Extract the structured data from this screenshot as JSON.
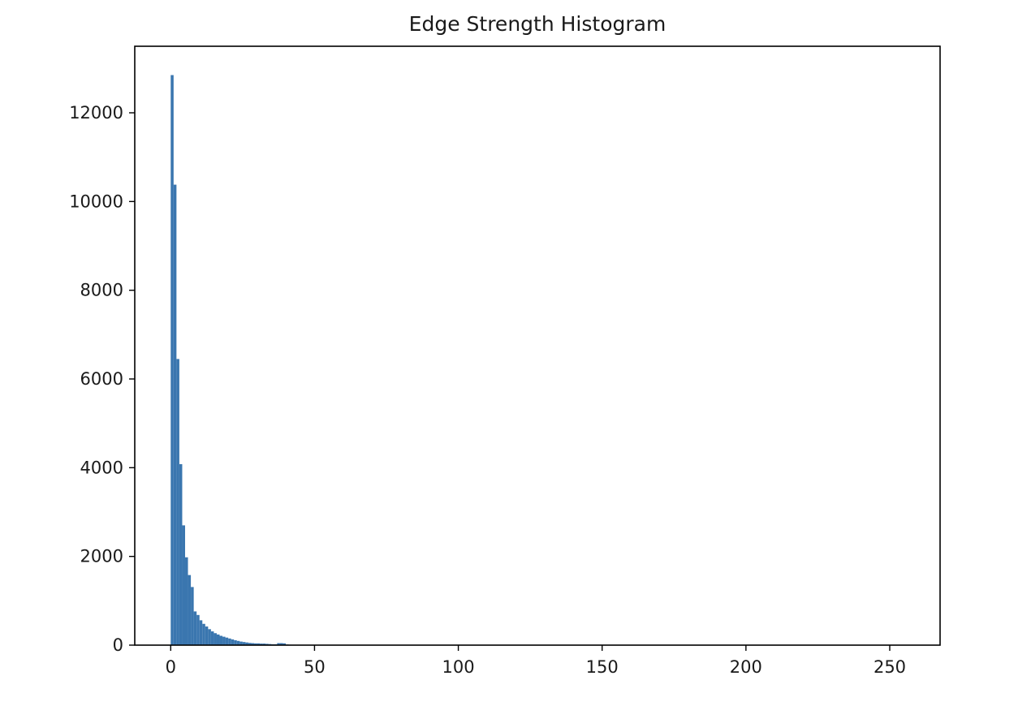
{
  "chart_data": {
    "type": "bar",
    "title": "Edge Strength Histogram",
    "xlabel": "",
    "ylabel": "",
    "bin_width": 1,
    "x_start": 0,
    "values": [
      12850,
      10380,
      6450,
      4080,
      2700,
      1980,
      1580,
      1310,
      760,
      680,
      560,
      480,
      420,
      360,
      310,
      270,
      240,
      210,
      190,
      170,
      150,
      130,
      110,
      95,
      80,
      70,
      60,
      50,
      45,
      40,
      40,
      35,
      35,
      30,
      25,
      20,
      20,
      45,
      45,
      40,
      15,
      10,
      8,
      6,
      5,
      4,
      3,
      3,
      2,
      2
    ],
    "xlim": [
      -12.5,
      267.5
    ],
    "ylim": [
      0,
      13500
    ],
    "xticks": [
      0,
      50,
      100,
      150,
      200,
      250
    ],
    "yticks": [
      0,
      2000,
      4000,
      6000,
      8000,
      10000,
      12000
    ],
    "grid": false,
    "legend": "none",
    "color": "#3a76af"
  }
}
